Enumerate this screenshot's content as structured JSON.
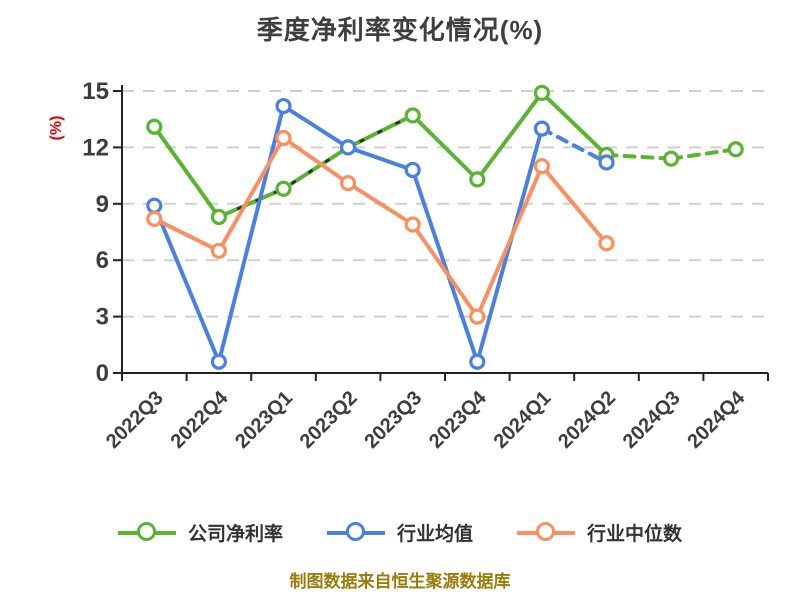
{
  "title": "季度净利率变化情况(%)",
  "caption": "制图数据来自恒生聚源数据库",
  "colors": {
    "background": "#ffffff",
    "title_text": "#3f3f3f",
    "axis": "#222222",
    "grid": "#cfcfcf",
    "tick_label": "#3d3d3d",
    "y_unit_label": "#e60000",
    "caption_text": "#9a7c0a",
    "legend_text": "#333333",
    "series_green": "#5ab431",
    "series_blue": "#4a80e0",
    "series_orange": "#fa8f5f",
    "marker_fill": "#ffffff"
  },
  "chart_data": {
    "type": "line",
    "title": "季度净利率变化情况(%)",
    "xlabel": "",
    "ylabel": "(%)",
    "ylim": [
      0,
      15
    ],
    "yticks": [
      0,
      3,
      6,
      9,
      12,
      15
    ],
    "grid": "horizontal-dashed",
    "legend_position": "bottom",
    "marker": "open-circle",
    "categories": [
      "2022Q3",
      "2022Q4",
      "2023Q1",
      "2023Q2",
      "2023Q3",
      "2023Q4",
      "2024Q1",
      "2024Q2",
      "2024Q3",
      "2024Q4"
    ],
    "series": [
      {
        "name": "公司净利率",
        "color": "#5ab431",
        "values": [
          13.1,
          8.3,
          9.8,
          12.0,
          13.7,
          10.3,
          14.9,
          11.6,
          11.4,
          11.9
        ],
        "dash_segments": [
          [
            7,
            9
          ]
        ],
        "dark_overlay_segments": [
          [
            1,
            4
          ]
        ]
      },
      {
        "name": "行业均值",
        "color": "#4a80e0",
        "values": [
          8.9,
          0.6,
          14.2,
          12.0,
          10.8,
          0.6,
          13.0,
          11.2,
          null,
          null
        ],
        "dash_segments": [
          [
            6,
            7
          ]
        ],
        "dark_overlay_segments": []
      },
      {
        "name": "行业中位数",
        "color": "#fa8f5f",
        "values": [
          8.2,
          6.5,
          12.5,
          10.1,
          7.9,
          3.0,
          11.0,
          6.9,
          null,
          null
        ],
        "dash_segments": [],
        "dark_overlay_segments": []
      }
    ]
  }
}
